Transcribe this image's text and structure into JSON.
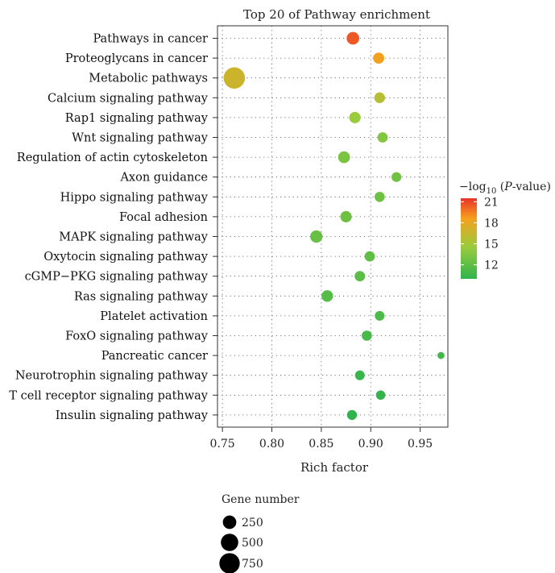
{
  "chart_data": {
    "type": "scatter",
    "title": "Top 20 of Pathway enrichment",
    "xlabel": "Rich factor",
    "xlim": [
      0.745,
      0.978
    ],
    "xticks": [
      0.75,
      0.8,
      0.85,
      0.9,
      0.95
    ],
    "xtick_labels": [
      "0.75",
      "0.80",
      "0.85",
      "0.90",
      "0.95"
    ],
    "grid": true,
    "categories": [
      "Pathways in cancer",
      "Proteoglycans in cancer",
      "Metabolic pathways",
      "Calcium signaling pathway",
      "Rap1 signaling pathway",
      "Wnt signaling pathway",
      "Regulation of actin cytoskeleton",
      "Axon guidance",
      "Hippo signaling pathway",
      "Focal adhesion",
      "MAPK signaling pathway",
      "Oxytocin signaling pathway",
      "cGMP−PKG signaling pathway",
      "Ras signaling pathway",
      "Platelet activation",
      "FoxO signaling pathway",
      "Pancreatic cancer",
      "Neurotrophin signaling pathway",
      "T cell receptor signaling pathway",
      "Insulin signaling pathway"
    ],
    "points": [
      {
        "x": 0.882,
        "gene_number": 205,
        "neglog10p": 20.5
      },
      {
        "x": 0.908,
        "gene_number": 140,
        "neglog10p": 18.5
      },
      {
        "x": 0.762,
        "gene_number": 840,
        "neglog10p": 16.8
      },
      {
        "x": 0.909,
        "gene_number": 125,
        "neglog10p": 15.8
      },
      {
        "x": 0.884,
        "gene_number": 150,
        "neglog10p": 14.5
      },
      {
        "x": 0.912,
        "gene_number": 110,
        "neglog10p": 13.5
      },
      {
        "x": 0.873,
        "gene_number": 170,
        "neglog10p": 13.2
      },
      {
        "x": 0.926,
        "gene_number": 95,
        "neglog10p": 12.8
      },
      {
        "x": 0.909,
        "gene_number": 105,
        "neglog10p": 12.6
      },
      {
        "x": 0.875,
        "gene_number": 150,
        "neglog10p": 12.6
      },
      {
        "x": 0.845,
        "gene_number": 195,
        "neglog10p": 12.4
      },
      {
        "x": 0.899,
        "gene_number": 110,
        "neglog10p": 12.0
      },
      {
        "x": 0.889,
        "gene_number": 115,
        "neglog10p": 11.8
      },
      {
        "x": 0.856,
        "gene_number": 160,
        "neglog10p": 11.6
      },
      {
        "x": 0.909,
        "gene_number": 90,
        "neglog10p": 11.2
      },
      {
        "x": 0.896,
        "gene_number": 105,
        "neglog10p": 11.0
      },
      {
        "x": 0.971,
        "gene_number": 25,
        "neglog10p": 10.8
      },
      {
        "x": 0.889,
        "gene_number": 90,
        "neglog10p": 10.4
      },
      {
        "x": 0.91,
        "gene_number": 80,
        "neglog10p": 10.2
      },
      {
        "x": 0.881,
        "gene_number": 100,
        "neglog10p": 10.0
      }
    ],
    "color_legend": {
      "title_prefix": "−log",
      "title_sub": "10",
      "title_open": " (",
      "title_italic": "P",
      "title_close": "-value)",
      "ticks": [
        21,
        18,
        15,
        12
      ],
      "tick_labels": [
        "21",
        "18",
        "15",
        "12"
      ],
      "range": [
        10,
        21.5
      ],
      "colors": {
        "high": "#e8322a",
        "mid_high": "#f5a01e",
        "mid": "#9bcb3c",
        "low": "#2fb44d"
      }
    },
    "size_legend": {
      "title": "Gene number",
      "values": [
        250,
        500,
        750
      ],
      "labels": [
        "250",
        "500",
        "750"
      ]
    }
  }
}
